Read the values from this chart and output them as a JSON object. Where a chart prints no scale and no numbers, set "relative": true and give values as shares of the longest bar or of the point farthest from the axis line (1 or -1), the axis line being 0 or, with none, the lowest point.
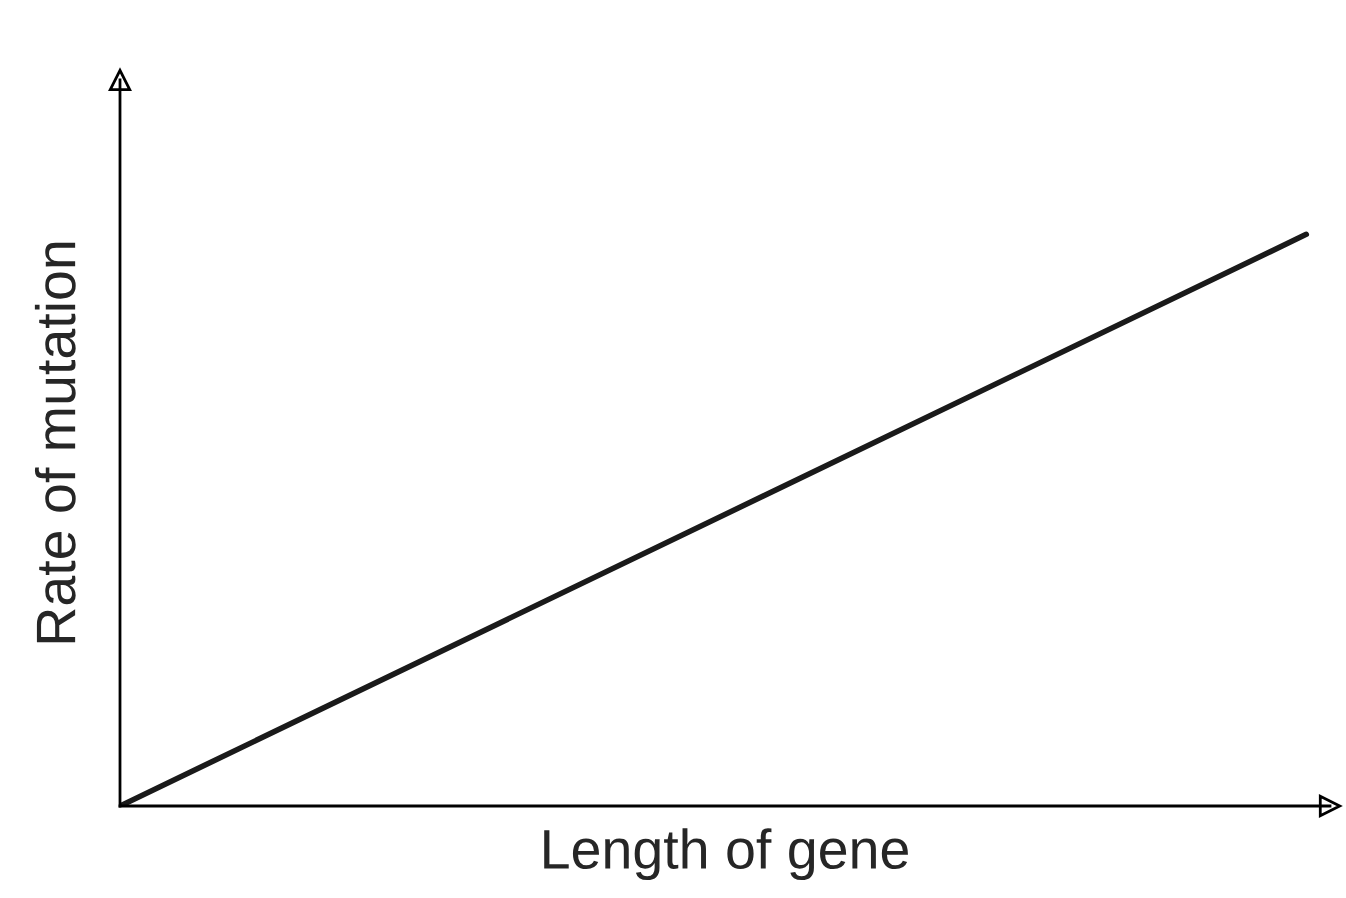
{
  "chart_data": {
    "type": "line",
    "relative": true,
    "xlabel": "Length of gene",
    "ylabel": "Rate of mutation",
    "categories": [
      null,
      null
    ],
    "series": [
      {
        "color": "#1a1a1a",
        "values": [
          0,
          1
        ]
      }
    ],
    "marker": "none",
    "line_style": "solid",
    "grid": false,
    "legend": false,
    "tick_labels": false
  }
}
